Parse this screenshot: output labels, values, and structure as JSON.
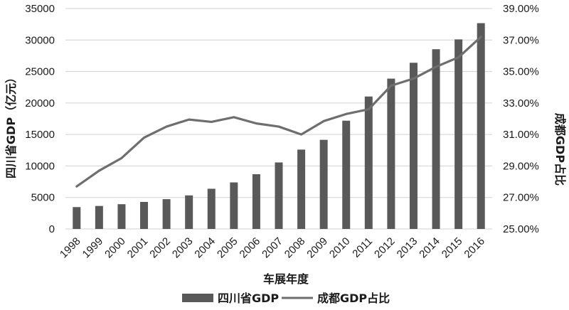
{
  "chart_data": {
    "type": "bar",
    "categories": [
      "1998",
      "1999",
      "2000",
      "2001",
      "2002",
      "2003",
      "2004",
      "2005",
      "2006",
      "2007",
      "2008",
      "2009",
      "2010",
      "2011",
      "2012",
      "2013",
      "2014",
      "2015",
      "2016"
    ],
    "series": [
      {
        "name": "四川省GDP",
        "type": "bar",
        "axis": "left",
        "color": "#595959",
        "values": [
          3470,
          3650,
          3930,
          4290,
          4730,
          5330,
          6380,
          7390,
          8690,
          10560,
          12600,
          14150,
          17190,
          21030,
          23870,
          26390,
          28540,
          30100,
          32680
        ]
      },
      {
        "name": "成都GDP占比",
        "type": "line",
        "axis": "right",
        "color": "#6e6e6e",
        "values": [
          27.7,
          28.7,
          29.5,
          30.8,
          31.5,
          31.95,
          31.8,
          32.1,
          31.7,
          31.5,
          31.0,
          31.85,
          32.3,
          32.6,
          34.1,
          34.55,
          35.3,
          35.9,
          37.2
        ]
      }
    ],
    "xlabel": "车展年度",
    "ylabel_left": "四川省GDP（亿元）",
    "ylabel_right": "成都GDP占比",
    "ylim_left": [
      0,
      35000
    ],
    "yticks_left": [
      "0",
      "5000",
      "10000",
      "15000",
      "20000",
      "25000",
      "30000",
      "35000"
    ],
    "ylim_right": [
      25,
      39
    ],
    "yticks_right": [
      "25.00%",
      "27.00%",
      "29.00%",
      "31.00%",
      "33.00%",
      "35.00%",
      "37.00%",
      "39.00%"
    ],
    "grid": true,
    "legend_position": "bottom"
  }
}
